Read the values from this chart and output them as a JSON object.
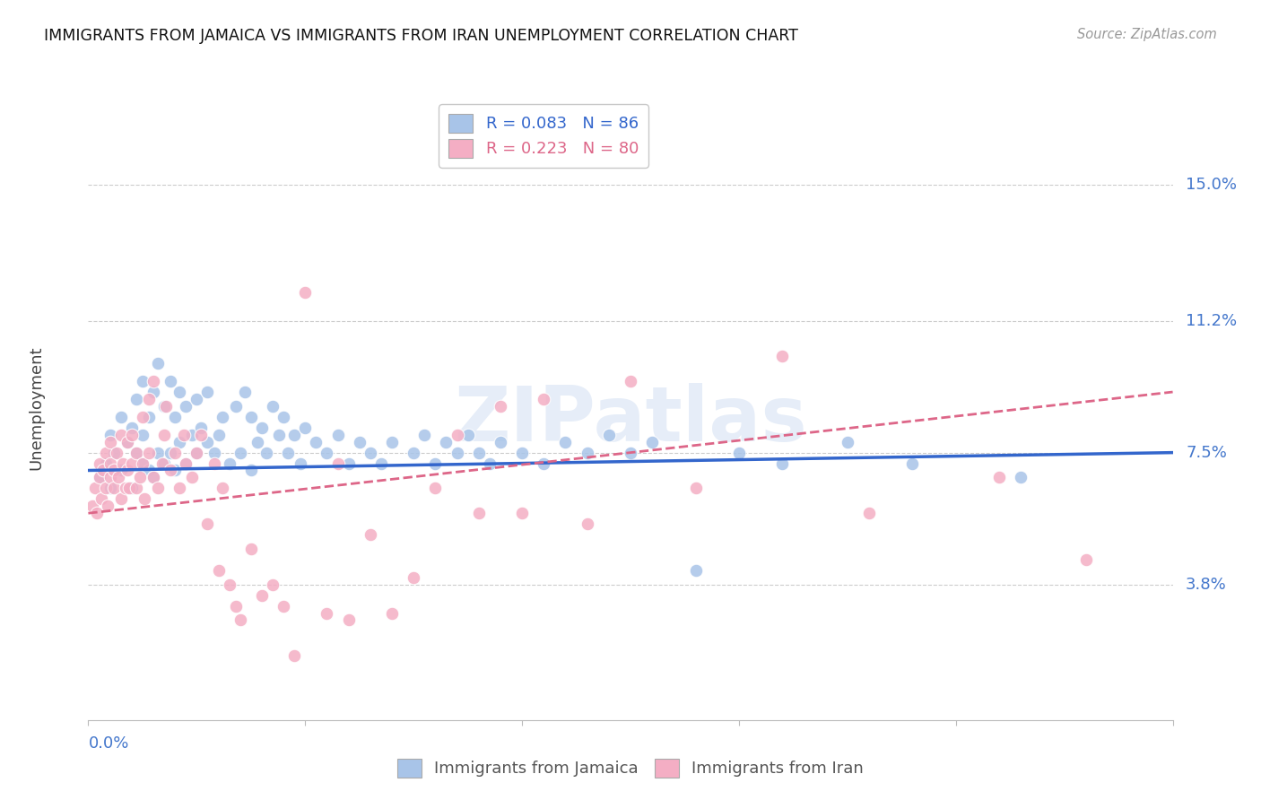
{
  "title": "IMMIGRANTS FROM JAMAICA VS IMMIGRANTS FROM IRAN UNEMPLOYMENT CORRELATION CHART",
  "source": "Source: ZipAtlas.com",
  "ylabel": "Unemployment",
  "ytick_labels": [
    "15.0%",
    "11.2%",
    "7.5%",
    "3.8%"
  ],
  "ytick_values": [
    0.15,
    0.112,
    0.075,
    0.038
  ],
  "xlim": [
    0.0,
    0.5
  ],
  "ylim": [
    0.0,
    0.175
  ],
  "jamaica_R": 0.083,
  "jamaica_N": 86,
  "iran_R": 0.223,
  "iran_N": 80,
  "jamaica_color": "#a8c4e8",
  "iran_color": "#f4aec4",
  "jamaica_line_color": "#3366cc",
  "iran_line_color": "#dd6688",
  "label_color": "#4477cc",
  "background_color": "#ffffff",
  "watermark": "ZIPatlas",
  "jamaica_scatter_x": [
    0.005,
    0.008,
    0.01,
    0.01,
    0.012,
    0.015,
    0.015,
    0.018,
    0.02,
    0.02,
    0.022,
    0.022,
    0.025,
    0.025,
    0.025,
    0.028,
    0.028,
    0.03,
    0.03,
    0.032,
    0.032,
    0.035,
    0.035,
    0.038,
    0.038,
    0.04,
    0.04,
    0.042,
    0.042,
    0.045,
    0.045,
    0.048,
    0.05,
    0.05,
    0.052,
    0.055,
    0.055,
    0.058,
    0.06,
    0.062,
    0.065,
    0.068,
    0.07,
    0.072,
    0.075,
    0.075,
    0.078,
    0.08,
    0.082,
    0.085,
    0.088,
    0.09,
    0.092,
    0.095,
    0.098,
    0.1,
    0.105,
    0.11,
    0.115,
    0.12,
    0.125,
    0.13,
    0.135,
    0.14,
    0.15,
    0.155,
    0.16,
    0.165,
    0.17,
    0.175,
    0.18,
    0.185,
    0.19,
    0.2,
    0.21,
    0.22,
    0.23,
    0.24,
    0.25,
    0.26,
    0.28,
    0.3,
    0.32,
    0.35,
    0.38,
    0.43
  ],
  "jamaica_scatter_y": [
    0.068,
    0.072,
    0.065,
    0.08,
    0.075,
    0.07,
    0.085,
    0.078,
    0.065,
    0.082,
    0.075,
    0.09,
    0.072,
    0.08,
    0.095,
    0.07,
    0.085,
    0.068,
    0.092,
    0.075,
    0.1,
    0.072,
    0.088,
    0.075,
    0.095,
    0.07,
    0.085,
    0.078,
    0.092,
    0.072,
    0.088,
    0.08,
    0.075,
    0.09,
    0.082,
    0.078,
    0.092,
    0.075,
    0.08,
    0.085,
    0.072,
    0.088,
    0.075,
    0.092,
    0.07,
    0.085,
    0.078,
    0.082,
    0.075,
    0.088,
    0.08,
    0.085,
    0.075,
    0.08,
    0.072,
    0.082,
    0.078,
    0.075,
    0.08,
    0.072,
    0.078,
    0.075,
    0.072,
    0.078,
    0.075,
    0.08,
    0.072,
    0.078,
    0.075,
    0.08,
    0.075,
    0.072,
    0.078,
    0.075,
    0.072,
    0.078,
    0.075,
    0.08,
    0.075,
    0.078,
    0.042,
    0.075,
    0.072,
    0.078,
    0.072,
    0.068
  ],
  "iran_scatter_x": [
    0.002,
    0.003,
    0.004,
    0.005,
    0.005,
    0.006,
    0.007,
    0.008,
    0.008,
    0.009,
    0.01,
    0.01,
    0.01,
    0.012,
    0.012,
    0.013,
    0.014,
    0.015,
    0.015,
    0.016,
    0.017,
    0.018,
    0.018,
    0.019,
    0.02,
    0.02,
    0.022,
    0.022,
    0.024,
    0.025,
    0.025,
    0.026,
    0.028,
    0.028,
    0.03,
    0.03,
    0.032,
    0.034,
    0.035,
    0.036,
    0.038,
    0.04,
    0.042,
    0.044,
    0.045,
    0.048,
    0.05,
    0.052,
    0.055,
    0.058,
    0.06,
    0.062,
    0.065,
    0.068,
    0.07,
    0.075,
    0.08,
    0.085,
    0.09,
    0.095,
    0.1,
    0.11,
    0.115,
    0.12,
    0.13,
    0.14,
    0.15,
    0.16,
    0.17,
    0.18,
    0.19,
    0.2,
    0.21,
    0.23,
    0.25,
    0.28,
    0.32,
    0.36,
    0.42,
    0.46
  ],
  "iran_scatter_y": [
    0.06,
    0.065,
    0.058,
    0.072,
    0.068,
    0.062,
    0.07,
    0.065,
    0.075,
    0.06,
    0.068,
    0.072,
    0.078,
    0.065,
    0.07,
    0.075,
    0.068,
    0.062,
    0.08,
    0.072,
    0.065,
    0.07,
    0.078,
    0.065,
    0.072,
    0.08,
    0.065,
    0.075,
    0.068,
    0.072,
    0.085,
    0.062,
    0.075,
    0.09,
    0.068,
    0.095,
    0.065,
    0.072,
    0.08,
    0.088,
    0.07,
    0.075,
    0.065,
    0.08,
    0.072,
    0.068,
    0.075,
    0.08,
    0.055,
    0.072,
    0.042,
    0.065,
    0.038,
    0.032,
    0.028,
    0.048,
    0.035,
    0.038,
    0.032,
    0.018,
    0.12,
    0.03,
    0.072,
    0.028,
    0.052,
    0.03,
    0.04,
    0.065,
    0.08,
    0.058,
    0.088,
    0.058,
    0.09,
    0.055,
    0.095,
    0.065,
    0.102,
    0.058,
    0.068,
    0.045
  ]
}
